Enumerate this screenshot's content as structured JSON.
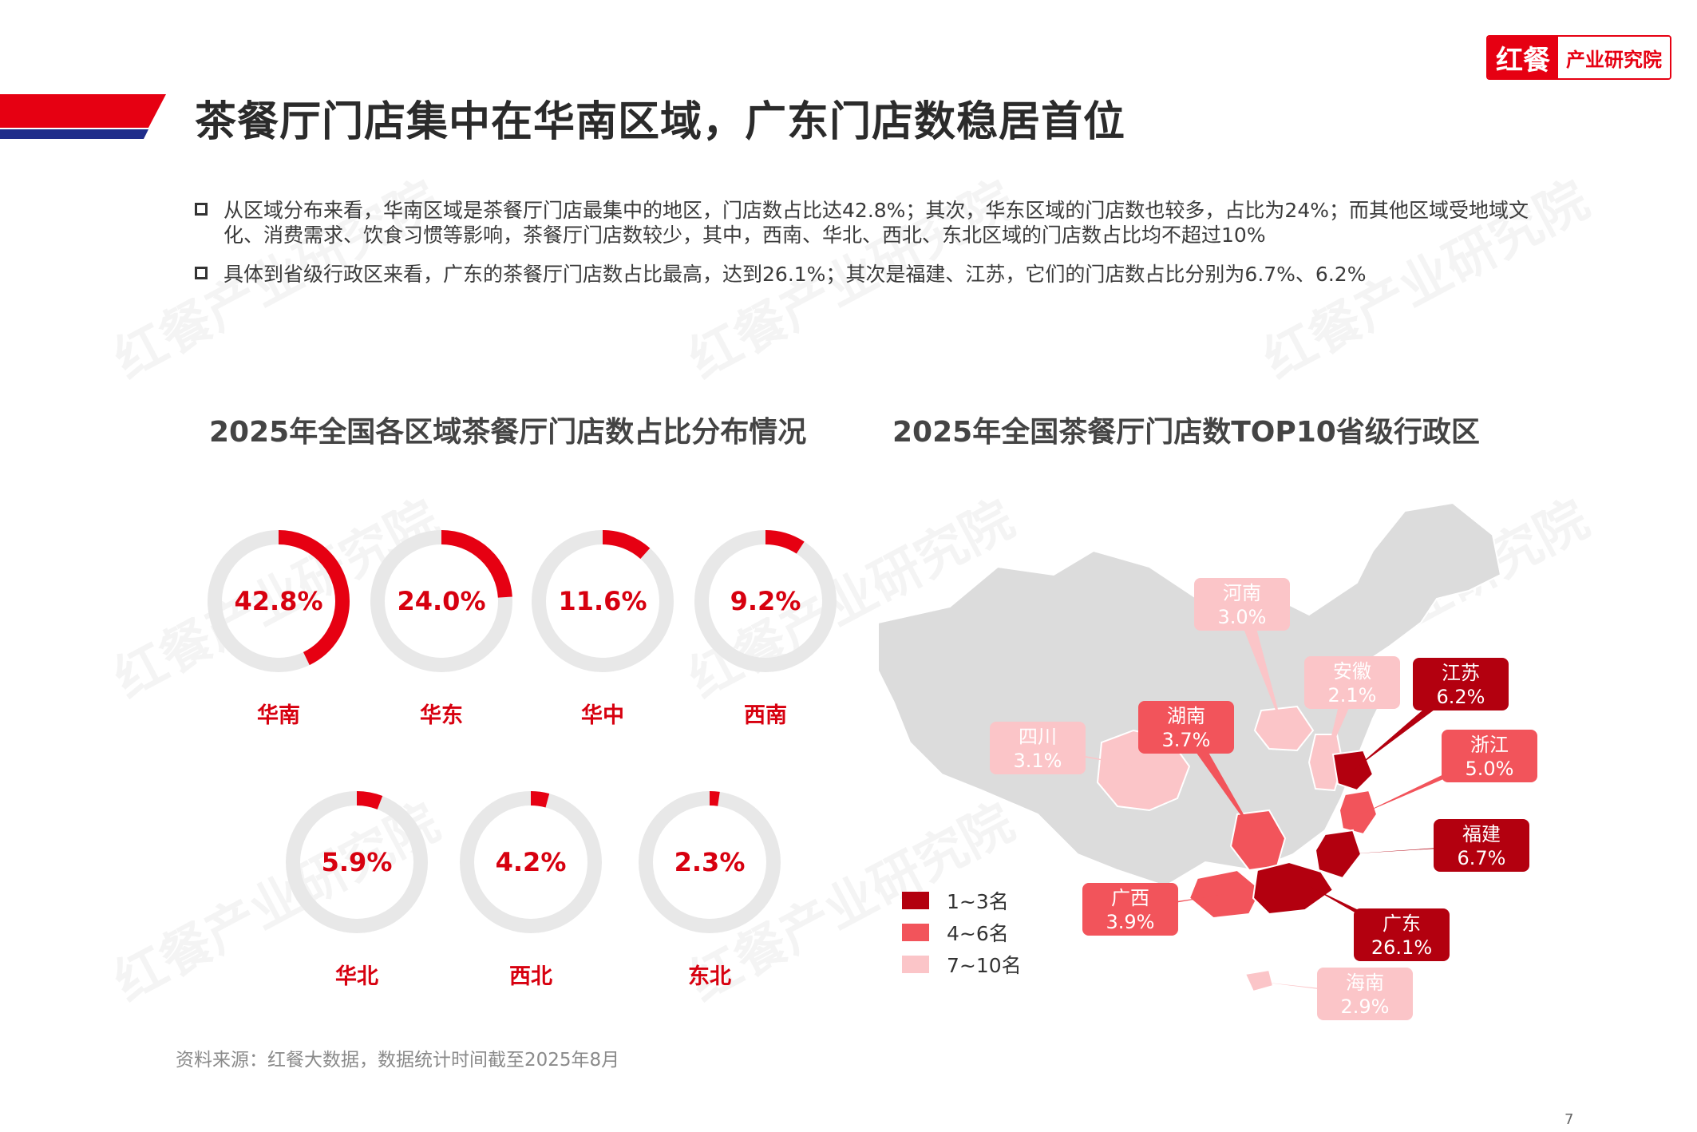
{
  "header": {
    "title": "茶餐厅门店集中在华南区域，广东门店数稳居首位",
    "logo_mark": "红餐",
    "logo_text": "产业研究院"
  },
  "bullets": [
    "从区域分布来看，华南区域是茶餐厅门店最集中的地区，门店数占比达42.8%；其次，华东区域的门店数也较多，占比为24%；而其他区域受地域文化、消费需求、饮食习惯等影响，茶餐厅门店数较少，其中，西南、华北、西北、东北区域的门店数占比均不超过10%",
    "具体到省级行政区来看，广东的茶餐厅门店数占比最高，达到26.1%；其次是福建、江苏，它们的门店数占比分别为6.7%、6.2%"
  ],
  "watermark": "红餐产业研究院",
  "colors": {
    "accent": "#e60012",
    "donut_track": "#e8e8e8",
    "rank1": "#b3000f",
    "rank2": "#f2545b",
    "rank3": "#fbc5c8",
    "map_base": "#dcdcdc"
  },
  "chart_data": [
    {
      "type": "pie",
      "title": "2025年全国各区域茶餐厅门店数占比分布情况",
      "categories": [
        "华南",
        "华东",
        "华中",
        "西南",
        "华北",
        "西北",
        "东北"
      ],
      "values": [
        42.8,
        24.0,
        11.6,
        9.2,
        5.9,
        4.2,
        2.3
      ],
      "value_labels": [
        "42.8%",
        "24.0%",
        "11.6%",
        "9.2%",
        "5.9%",
        "4.2%",
        "2.3%"
      ],
      "unit": "%"
    },
    {
      "type": "map",
      "title": "2025年全国茶餐厅门店数TOP10省级行政区",
      "legend": [
        "1~3名",
        "4~6名",
        "7~10名"
      ],
      "regions": [
        {
          "name": "广东",
          "value": "26.1%",
          "tier": 1
        },
        {
          "name": "福建",
          "value": "6.7%",
          "tier": 1
        },
        {
          "name": "江苏",
          "value": "6.2%",
          "tier": 1
        },
        {
          "name": "浙江",
          "value": "5.0%",
          "tier": 2
        },
        {
          "name": "广西",
          "value": "3.9%",
          "tier": 2
        },
        {
          "name": "湖南",
          "value": "3.7%",
          "tier": 2
        },
        {
          "name": "四川",
          "value": "3.1%",
          "tier": 3
        },
        {
          "name": "河南",
          "value": "3.0%",
          "tier": 3
        },
        {
          "name": "海南",
          "value": "2.9%",
          "tier": 3
        },
        {
          "name": "安徽",
          "value": "2.1%",
          "tier": 3
        }
      ]
    }
  ],
  "source": "资料来源：红餐大数据，数据统计时间截至2025年8月",
  "page_number": "7"
}
